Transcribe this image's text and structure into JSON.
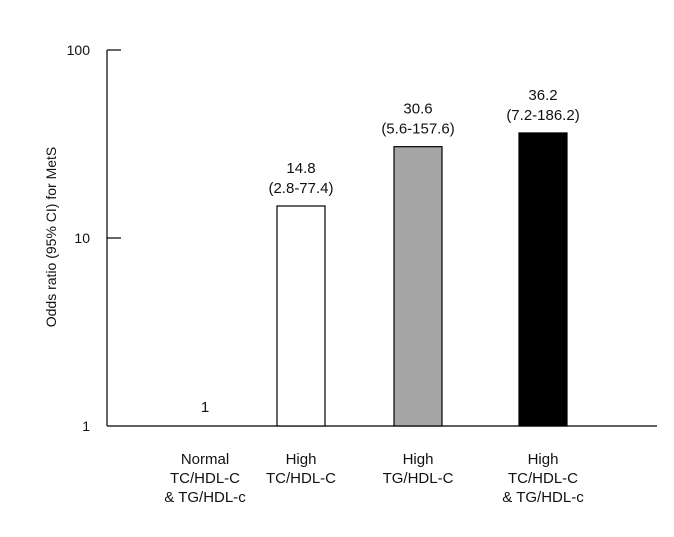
{
  "chart_data": {
    "type": "bar",
    "y_scale": "log",
    "ylim": [
      1,
      100
    ],
    "ylabel": "Odds ratio (95% CI) for MetS",
    "y_ticks": [
      1,
      10,
      100
    ],
    "y_tick_labels": [
      "1",
      "10",
      "100"
    ],
    "grid": false,
    "categories": [
      {
        "lines": [
          "Normal",
          "TC/HDL-C",
          "& TG/HDL-c"
        ]
      },
      {
        "lines": [
          "High",
          "TC/HDL-C"
        ]
      },
      {
        "lines": [
          "High",
          "TG/HDL-C"
        ]
      },
      {
        "lines": [
          "High",
          "TC/HDL-C",
          "& TG/HDL-c"
        ]
      }
    ],
    "values": [
      1,
      14.8,
      30.6,
      36.2
    ],
    "value_labels": [
      "1",
      "14.8",
      "30.6",
      "36.2"
    ],
    "ci_labels": [
      "",
      "(2.8-77.4)",
      "(5.6-157.6)",
      "(7.2-186.2)"
    ],
    "bar_fill_colors": [
      "#ffffff",
      "#ffffff",
      "#a6a6a6",
      "#000000"
    ],
    "bar_stroke_color": "#000000"
  }
}
